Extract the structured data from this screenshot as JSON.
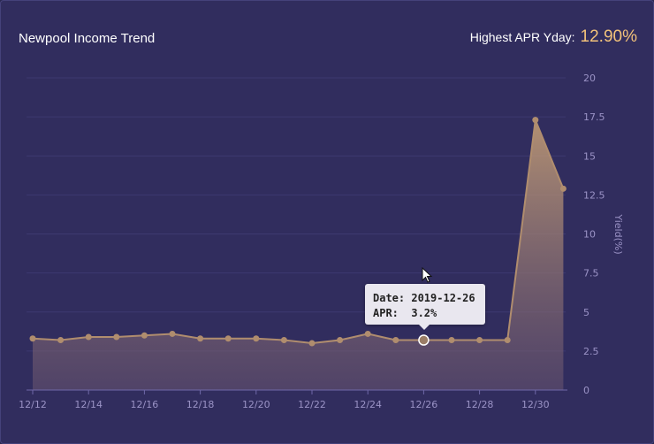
{
  "header": {
    "title": "Newpool Income Trend",
    "highest_label": "Highest APR Yday:",
    "highest_value": "12.90%"
  },
  "tooltip": {
    "date_label": "Date:",
    "date_value": "2019-12-26",
    "apr_label": "APR:",
    "apr_value": "3.2%"
  },
  "colors": {
    "background": "#312d5e",
    "line": "#b08d6e",
    "accent": "#f2c27a",
    "text": "#9b93c6"
  },
  "chart_data": {
    "type": "area",
    "x": [
      "12/12",
      "12/13",
      "12/14",
      "12/15",
      "12/16",
      "12/17",
      "12/18",
      "12/19",
      "12/20",
      "12/21",
      "12/22",
      "12/23",
      "12/24",
      "12/25",
      "12/26",
      "12/27",
      "12/28",
      "12/29",
      "12/30",
      "12/31"
    ],
    "x_tick_labels": [
      "12/12",
      "12/14",
      "12/16",
      "12/18",
      "12/20",
      "12/22",
      "12/24",
      "12/26",
      "12/28",
      "12/30"
    ],
    "series": [
      {
        "values": [
          3.3,
          3.2,
          3.4,
          3.4,
          3.5,
          3.6,
          3.3,
          3.3,
          3.3,
          3.2,
          3.0,
          3.2,
          3.6,
          3.2,
          3.2,
          3.2,
          3.2,
          3.2,
          17.3,
          12.9
        ]
      }
    ],
    "ylabel": "Yield(%)",
    "ylim": [
      0,
      20
    ],
    "y_ticks": [
      "0",
      "2.5",
      "5",
      "7.5",
      "10",
      "12.5",
      "15",
      "17.5",
      "20"
    ],
    "y_axis_position": "right",
    "grid": true,
    "highlighted_x": "12/26"
  }
}
